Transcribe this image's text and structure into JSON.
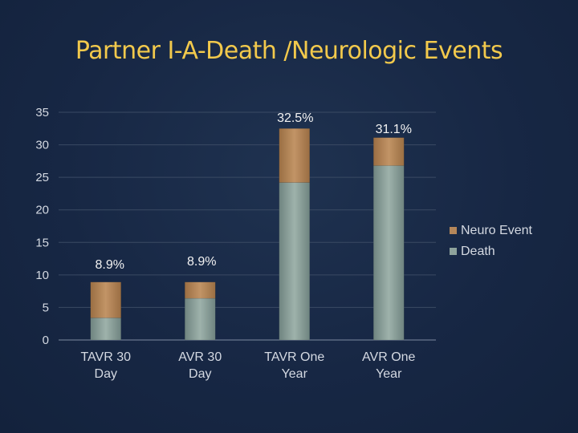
{
  "slide": {
    "title": "Partner I-A-Death /Neurologic Events"
  },
  "colors": {
    "death": "#8ea39c",
    "neuro": "#b5875a",
    "axis": "#d4d9e2",
    "grid": "#3a4a63",
    "title": "#f2c94c"
  },
  "chart_data": {
    "type": "bar",
    "stacked": true,
    "title": "",
    "xlabel": "",
    "ylabel": "",
    "ylim": [
      0,
      35
    ],
    "yticks": [
      0,
      5,
      10,
      15,
      20,
      25,
      30,
      35
    ],
    "grid": true,
    "legend_position": "right",
    "categories": [
      [
        "TAVR 30",
        "Day"
      ],
      [
        "AVR 30",
        "Day"
      ],
      [
        "TAVR One",
        "Year"
      ],
      [
        "AVR One",
        "Year"
      ]
    ],
    "series": [
      {
        "name": "Death",
        "values": [
          3.4,
          6.4,
          24.2,
          26.8
        ]
      },
      {
        "name": "Neuro Event",
        "values": [
          5.5,
          2.5,
          8.3,
          4.3
        ]
      }
    ],
    "legend_order": [
      "Neuro Event",
      "Death"
    ],
    "data_labels": [
      "8.9%",
      "8.9%",
      "32.5%",
      "31.1%"
    ]
  }
}
